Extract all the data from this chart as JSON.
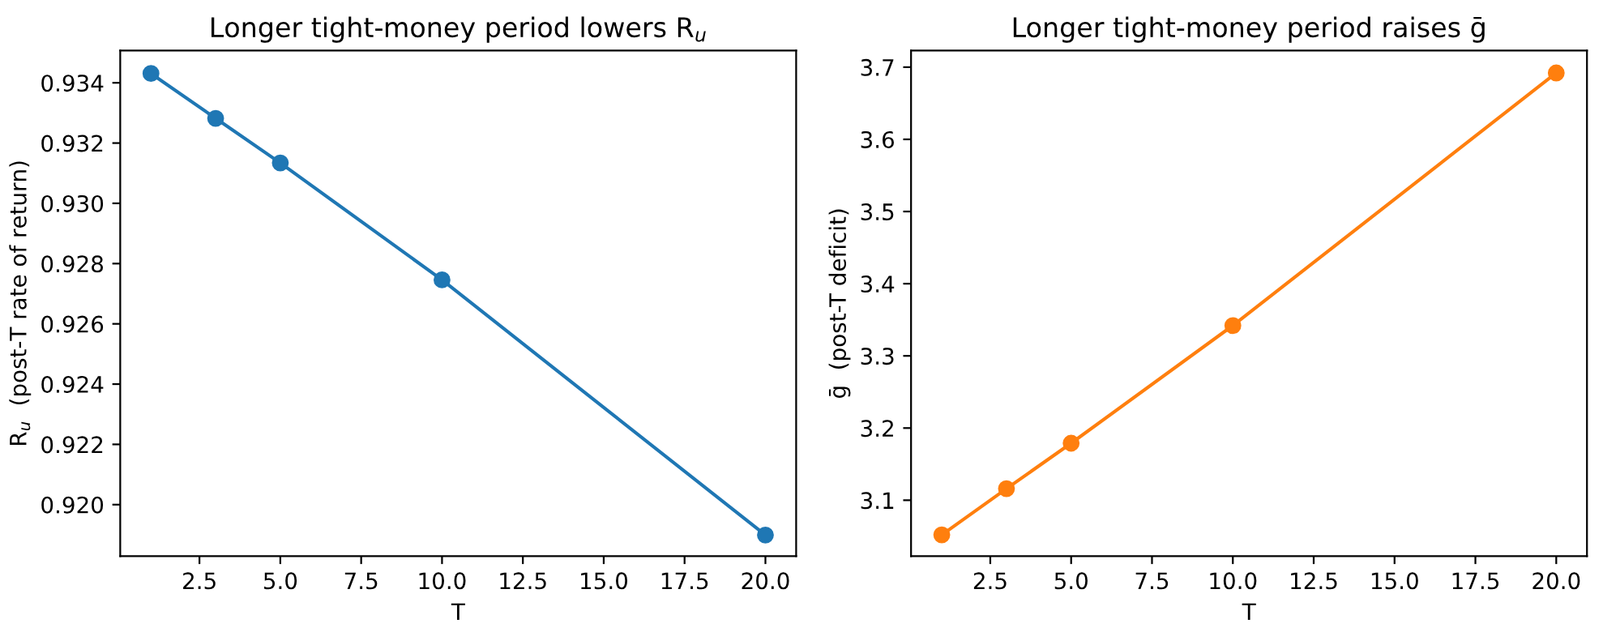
{
  "chart_data": [
    {
      "type": "line",
      "title": "Longer tight-money period lowers R$_{u}$",
      "xlabel": "T",
      "ylabel": "R$_{u}$  (post-T rate of return)",
      "x": [
        1,
        3,
        5,
        10,
        20
      ],
      "series": [
        {
          "color": "#1f77b4",
          "values": [
            0.93431,
            0.93282,
            0.93134,
            0.92746,
            0.91899
          ]
        }
      ],
      "marker": "circle",
      "line_style": "solid",
      "grid": false,
      "xlim": [
        0.05,
        20.95
      ],
      "xticks": [
        {
          "value": 2.5,
          "label": "2.5"
        },
        {
          "value": 5,
          "label": "5.0"
        },
        {
          "value": 7.5,
          "label": "7.5"
        },
        {
          "value": 10,
          "label": "10.0"
        },
        {
          "value": 12.5,
          "label": "12.5"
        },
        {
          "value": 15,
          "label": "15.0"
        },
        {
          "value": 17.5,
          "label": "17.5"
        },
        {
          "value": 20,
          "label": "20.0"
        }
      ],
      "ylim": [
        0.91829,
        0.93507
      ],
      "yticks": [
        {
          "value": 0.92,
          "label": "0.920"
        },
        {
          "value": 0.922,
          "label": "0.922"
        },
        {
          "value": 0.924,
          "label": "0.924"
        },
        {
          "value": 0.926,
          "label": "0.926"
        },
        {
          "value": 0.928,
          "label": "0.928"
        },
        {
          "value": 0.93,
          "label": "0.930"
        },
        {
          "value": 0.932,
          "label": "0.932"
        },
        {
          "value": 0.934,
          "label": "0.934"
        }
      ]
    },
    {
      "type": "line",
      "title": "Longer tight-money period raises ḡ",
      "xlabel": "T",
      "ylabel": "ḡ  (post-T deficit)",
      "x": [
        1,
        3,
        5,
        10,
        20
      ],
      "series": [
        {
          "color": "#ff7f0e",
          "values": [
            3.052,
            3.116,
            3.179,
            3.342,
            3.692
          ]
        }
      ],
      "marker": "circle",
      "line_style": "solid",
      "grid": false,
      "xlim": [
        0.05,
        20.95
      ],
      "xticks": [
        {
          "value": 2.5,
          "label": "2.5"
        },
        {
          "value": 5,
          "label": "5.0"
        },
        {
          "value": 7.5,
          "label": "7.5"
        },
        {
          "value": 10,
          "label": "10.0"
        },
        {
          "value": 12.5,
          "label": "12.5"
        },
        {
          "value": 15,
          "label": "15.0"
        },
        {
          "value": 17.5,
          "label": "17.5"
        },
        {
          "value": 20,
          "label": "20.0"
        }
      ],
      "ylim": [
        3.0225,
        3.723
      ],
      "yticks": [
        3.1,
        3.2,
        3.3,
        3.4,
        3.5,
        3.6,
        3.7
      ]
    }
  ]
}
